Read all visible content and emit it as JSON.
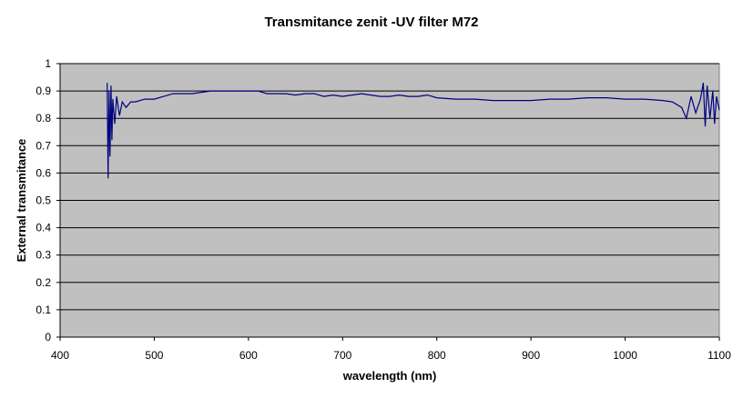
{
  "chart_data": {
    "type": "line",
    "title": "Transmitance zenit -UV filter M72",
    "xlabel": "wavelength (nm)",
    "ylabel": "External transmitance",
    "xlim": [
      400,
      1100
    ],
    "ylim": [
      0,
      1
    ],
    "x_ticks": [
      "400",
      "500",
      "600",
      "700",
      "800",
      "900",
      "1000",
      "1100"
    ],
    "y_ticks": [
      "0",
      "0.1",
      "0.2",
      "0.3",
      "0.4",
      "0.5",
      "0.6",
      "0.7",
      "0.8",
      "0.9",
      "1"
    ],
    "grid": true,
    "plot_background": "#c0c0c0",
    "line_color": "#000080",
    "series": [
      {
        "x": [
          450,
          451,
          452,
          453,
          454,
          455,
          456,
          458,
          460,
          463,
          466,
          470,
          475,
          480,
          490,
          500,
          510,
          520,
          530,
          540,
          550,
          560,
          570,
          580,
          590,
          600,
          610,
          620,
          630,
          640,
          650,
          660,
          670,
          680,
          690,
          700,
          710,
          720,
          730,
          740,
          750,
          760,
          770,
          780,
          790,
          800,
          820,
          840,
          860,
          880,
          900,
          920,
          940,
          960,
          980,
          1000,
          1020,
          1040,
          1050,
          1060,
          1065,
          1070,
          1075,
          1080,
          1083,
          1085,
          1087,
          1090,
          1093,
          1095,
          1097,
          1100
        ],
        "y": [
          0.93,
          0.58,
          0.9,
          0.66,
          0.92,
          0.72,
          0.87,
          0.78,
          0.88,
          0.81,
          0.86,
          0.84,
          0.86,
          0.86,
          0.87,
          0.87,
          0.88,
          0.89,
          0.89,
          0.89,
          0.895,
          0.9,
          0.9,
          0.9,
          0.9,
          0.9,
          0.9,
          0.89,
          0.89,
          0.89,
          0.885,
          0.89,
          0.89,
          0.88,
          0.885,
          0.88,
          0.885,
          0.89,
          0.885,
          0.88,
          0.88,
          0.885,
          0.88,
          0.88,
          0.885,
          0.875,
          0.87,
          0.87,
          0.865,
          0.865,
          0.865,
          0.87,
          0.87,
          0.875,
          0.875,
          0.87,
          0.87,
          0.865,
          0.86,
          0.84,
          0.8,
          0.88,
          0.82,
          0.87,
          0.93,
          0.77,
          0.92,
          0.8,
          0.9,
          0.78,
          0.88,
          0.83
        ]
      }
    ]
  }
}
